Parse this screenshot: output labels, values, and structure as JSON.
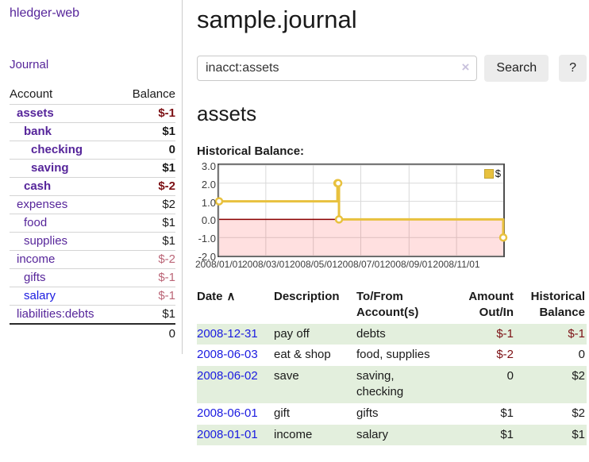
{
  "app": {
    "title": "hledger-web"
  },
  "sidebar": {
    "journal_link": "Journal",
    "account_header": "Account",
    "balance_header": "Balance",
    "accounts": [
      {
        "name": "assets",
        "depth": 0,
        "bold": true,
        "link": "purple",
        "balance": "$-1",
        "style": "neg"
      },
      {
        "name": "bank",
        "depth": 1,
        "bold": true,
        "link": "purple",
        "balance": "$1",
        "style": "pos"
      },
      {
        "name": "checking",
        "depth": 2,
        "bold": true,
        "link": "purple",
        "balance": "0",
        "style": "pos"
      },
      {
        "name": "saving",
        "depth": 2,
        "bold": true,
        "link": "purple",
        "balance": "$1",
        "style": "pos"
      },
      {
        "name": "cash",
        "depth": 1,
        "bold": true,
        "link": "purple",
        "balance": "$-2",
        "style": "neg"
      },
      {
        "name": "expenses",
        "depth": 0,
        "bold": false,
        "link": "purple",
        "balance": "$2",
        "style": "pos"
      },
      {
        "name": "food",
        "depth": 1,
        "bold": false,
        "link": "purple",
        "balance": "$1",
        "style": "pos"
      },
      {
        "name": "supplies",
        "depth": 1,
        "bold": false,
        "link": "purple",
        "balance": "$1",
        "style": "pos"
      },
      {
        "name": "income",
        "depth": 0,
        "bold": false,
        "link": "purple",
        "balance": "$-2",
        "style": "negm"
      },
      {
        "name": "gifts",
        "depth": 1,
        "bold": false,
        "link": "purple",
        "balance": "$-1",
        "style": "negm"
      },
      {
        "name": "salary",
        "depth": 1,
        "bold": false,
        "link": "blue",
        "balance": "$-1",
        "style": "negm"
      },
      {
        "name": "liabilities:debts",
        "depth": 0,
        "bold": false,
        "link": "purple",
        "balance": "$1",
        "style": "pos"
      }
    ],
    "total": "0"
  },
  "main": {
    "title": "sample.journal",
    "search": {
      "value": "inacct:assets",
      "clear_icon": "×",
      "search_button": "Search",
      "help_button": "?"
    },
    "account_heading": "assets",
    "chart_label": "Historical Balance:"
  },
  "chart_data": {
    "type": "line",
    "title": "Historical Balance",
    "step": "after",
    "x": [
      "2008-01-01",
      "2008-06-01",
      "2008-06-02",
      "2008-06-03",
      "2008-12-31"
    ],
    "series": [
      {
        "name": "$",
        "color": "#e8c13e",
        "values": [
          1.0,
          2.0,
          2.0,
          0.0,
          -1.0
        ]
      }
    ],
    "xlim": [
      "2008-01-01",
      "2008-12-31"
    ],
    "ylim": [
      -2.0,
      3.0
    ],
    "x_ticks": [
      {
        "value": "2008-01-01",
        "label": "2008/01/01"
      },
      {
        "value": "2008-03-01",
        "label": "2008/03/01"
      },
      {
        "value": "2008-05-01",
        "label": "2008/05/01"
      },
      {
        "value": "2008-07-01",
        "label": "2008/07/01"
      },
      {
        "value": "2008-09-01",
        "label": "2008/09/01"
      },
      {
        "value": "2008-11-01",
        "label": "2008/11/01"
      }
    ],
    "y_ticks": [
      {
        "value": 3,
        "label": "3.0"
      },
      {
        "value": 2,
        "label": "2.0"
      },
      {
        "value": 1,
        "label": "1.0"
      },
      {
        "value": 0,
        "label": "0.0"
      },
      {
        "value": -1,
        "label": "-1.0"
      },
      {
        "value": -2,
        "label": "-2.0"
      }
    ],
    "grid": true,
    "legend": {
      "position": "top-right",
      "label": "$"
    },
    "grid_color": "#d9d9d9",
    "border_color": "#4f4f4f",
    "zero_line_color": "#8b0000",
    "negative_region_fill": "rgba(255,0,0,0.12)",
    "marker_fill": "#ffffff"
  },
  "register": {
    "sort_icon": "∧",
    "columns": [
      {
        "lines": [
          "Date"
        ],
        "align": "left",
        "sortable": true
      },
      {
        "lines": [
          "Description"
        ],
        "align": "left"
      },
      {
        "lines": [
          "To/From",
          "Account(s)"
        ],
        "align": "left"
      },
      {
        "lines": [
          "Amount",
          "Out/In"
        ],
        "align": "right"
      },
      {
        "lines": [
          "Historical",
          "Balance"
        ],
        "align": "right"
      }
    ],
    "rows": [
      {
        "date": "2008-12-31",
        "description": "pay off",
        "accounts": "debts",
        "amount": "$-1",
        "amount_negative": true,
        "balance": "$-1",
        "balance_negative": true
      },
      {
        "date": "2008-06-03",
        "description": "eat & shop",
        "accounts": "food, supplies",
        "amount": "$-2",
        "amount_negative": true,
        "balance": "0",
        "balance_negative": false
      },
      {
        "date": "2008-06-02",
        "description": "save",
        "accounts": "saving,\nchecking",
        "amount": "0",
        "amount_negative": false,
        "balance": "$2",
        "balance_negative": false
      },
      {
        "date": "2008-06-01",
        "description": "gift",
        "accounts": "gifts",
        "amount": "$1",
        "amount_negative": false,
        "balance": "$2",
        "balance_negative": false
      },
      {
        "date": "2008-01-01",
        "description": "income",
        "accounts": "salary",
        "amount": "$1",
        "amount_negative": false,
        "balance": "$1",
        "balance_negative": false
      }
    ]
  },
  "colors": {
    "link_purple": "#56259a",
    "link_blue": "#1b1be0",
    "negative": "#7c1014",
    "negative_muted": "#bb6577",
    "row_stripe_green": "#e3efdd",
    "series_gold": "#e8c13e",
    "button_gray": "#ececec"
  }
}
